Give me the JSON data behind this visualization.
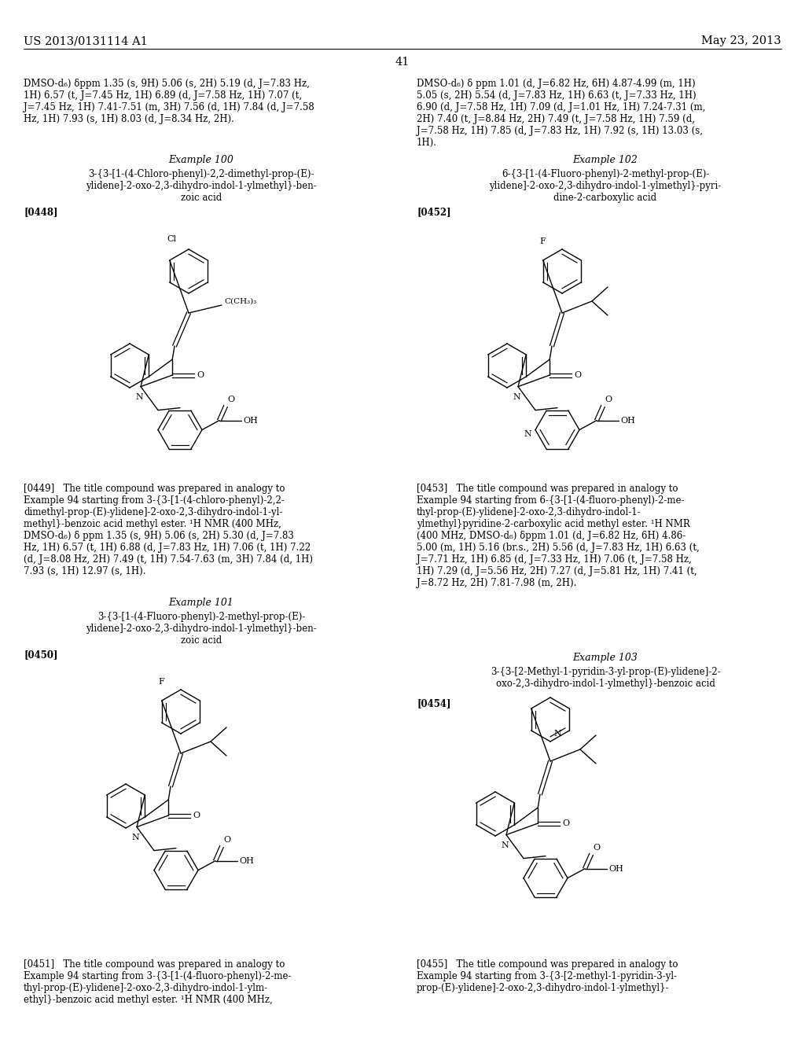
{
  "background_color": "#ffffff",
  "header_left": "US 2013/0131114 A1",
  "header_right": "May 23, 2013",
  "page_number": "41",
  "top_text_left": "DMSO-d₆) δppm 1.35 (s, 9H) 5.06 (s, 2H) 5.19 (d, J=7.83 Hz,\n1H) 6.57 (t, J=7.45 Hz, 1H) 6.89 (d, J=7.58 Hz, 1H) 7.07 (t,\nJ=7.45 Hz, 1H) 7.41-7.51 (m, 3H) 7.56 (d, 1H) 7.84 (d, J=7.58\nHz, 1H) 7.93 (s, 1H) 8.03 (d, J=8.34 Hz, 2H).",
  "top_text_right": "DMSO-d₆) δ ppm 1.01 (d, J=6.82 Hz, 6H) 4.87-4.99 (m, 1H)\n5.05 (s, 2H) 5.54 (d, J=7.83 Hz, 1H) 6.63 (t, J=7.33 Hz, 1H)\n6.90 (d, J=7.58 Hz, 1H) 7.09 (d, J=1.01 Hz, 1H) 7.24-7.31 (m,\n2H) 7.40 (t, J=8.84 Hz, 2H) 7.49 (t, J=7.58 Hz, 1H) 7.59 (d,\nJ=7.58 Hz, 1H) 7.85 (d, J=7.83 Hz, 1H) 7.92 (s, 1H) 13.03 (s,\n1H).",
  "ex100_title": "Example 100",
  "ex100_name": "3-{3-[1-(4-Chloro-phenyl)-2,2-dimethyl-prop-(E)-\nylidene]-2-oxo-2,3-dihydro-indol-1-ylmethyl}-ben-\nzoic acid",
  "ex100_tag": "[0448]",
  "ex101_title": "Example 101",
  "ex101_name": "3-{3-[1-(4-Fluoro-phenyl)-2-methyl-prop-(E)-\nylidene]-2-oxo-2,3-dihydro-indol-1-ylmethyl}-ben-\nzoic acid",
  "ex101_tag": "[0450]",
  "ex102_title": "Example 102",
  "ex102_name": "6-{3-[1-(4-Fluoro-phenyl)-2-methyl-prop-(E)-\nylidene]-2-oxo-2,3-dihydro-indol-1-ylmethyl}-pyri-\ndine-2-carboxylic acid",
  "ex102_tag": "[0452]",
  "ex103_title": "Example 103",
  "ex103_name": "3-{3-[2-Methyl-1-pyridin-3-yl-prop-(E)-ylidene]-2-\noxo-2,3-dihydro-indol-1-ylmethyl}-benzoic acid",
  "ex103_tag": "[0454]",
  "text_0449": "[0449]   The title compound was prepared in analogy to\nExample 94 starting from 3-{3-[1-(4-chloro-phenyl)-2,2-\ndimethyl-prop-(E)-ylidene]-2-oxo-2,3-dihydro-indol-1-yl-\nmethyl}-benzoic acid methyl ester. ¹H NMR (400 MHz,\nDMSO-d₆) δ ppm 1.35 (s, 9H) 5.06 (s, 2H) 5.30 (d, J=7.83\nHz, 1H) 6.57 (t, 1H) 6.88 (d, J=7.83 Hz, 1H) 7.06 (t, 1H) 7.22\n(d, J=8.08 Hz, 2H) 7.49 (t, 1H) 7.54-7.63 (m, 3H) 7.84 (d, 1H)\n7.93 (s, 1H) 12.97 (s, 1H).",
  "text_0451": "[0451]   The title compound was prepared in analogy to\nExample 94 starting from 3-{3-[1-(4-fluoro-phenyl)-2-me-\nthyl-prop-(E)-ylidene]-2-oxo-2,3-dihydro-indol-1-ylm-\nethyl}-benzoic acid methyl ester. ¹H NMR (400 MHz,",
  "text_0453": "[0453]   The title compound was prepared in analogy to\nExample 94 starting from 6-{3-[1-(4-fluoro-phenyl)-2-me-\nthyl-prop-(E)-ylidene]-2-oxo-2,3-dihydro-indol-1-\nylmethyl}pyridine-2-carboxylic acid methyl ester. ¹H NMR\n(400 MHz, DMSO-d₆) δppm 1.01 (d, J=6.82 Hz, 6H) 4.86-\n5.00 (m, 1H) 5.16 (br.s., 2H) 5.56 (d, J=7.83 Hz, 1H) 6.63 (t,\nJ=7.71 Hz, 1H) 6.85 (d, J=7.33 Hz, 1H) 7.06 (t, J=7.58 Hz,\n1H) 7.29 (d, J=5.56 Hz, 2H) 7.27 (d, J=5.81 Hz, 1H) 7.41 (t,\nJ=8.72 Hz, 2H) 7.81-7.98 (m, 2H).",
  "text_0455": "[0455]   The title compound was prepared in analogy to\nExample 94 starting from 3-{3-[2-methyl-1-pyridin-3-yl-\nprop-(E)-ylidene]-2-oxo-2,3-dihydro-indol-1-ylmethyl}-"
}
